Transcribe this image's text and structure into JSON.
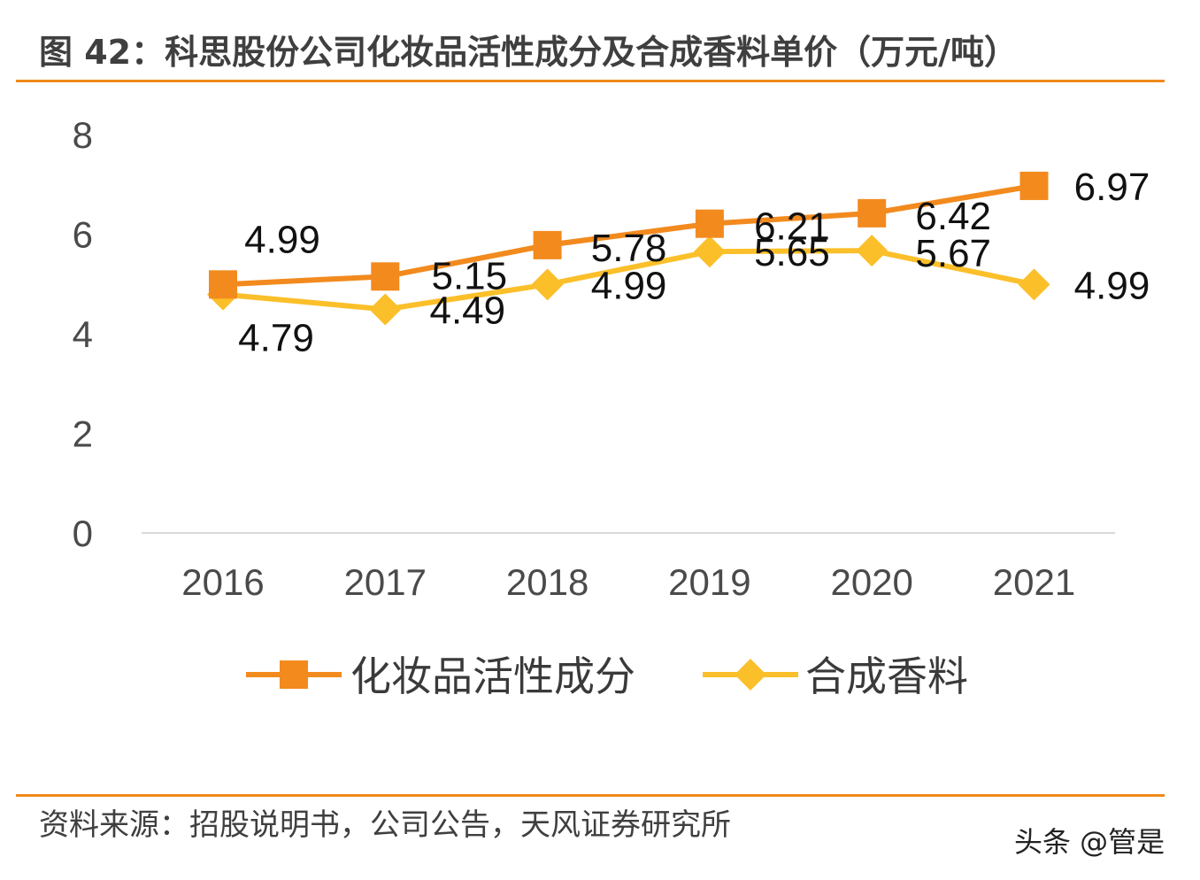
{
  "figure": {
    "title": "图 42：科思股份公司化妆品活性成分及合成香料单价（万元/吨）",
    "source": "资料来源：招股说明书，公司公告，天风证券研究所",
    "watermark": "头条 @管是"
  },
  "colors": {
    "rule": "#f08a1c",
    "series1": "#f28a1e",
    "series2": "#fbbf2a",
    "axis": "#d9d9d9",
    "tick_text": "#4a4a4a"
  },
  "chart_data": {
    "type": "line",
    "categories": [
      "2016",
      "2017",
      "2018",
      "2019",
      "2020",
      "2021"
    ],
    "ylim": [
      0,
      8
    ],
    "yticks": [
      "0",
      "2",
      "4",
      "6",
      "8"
    ],
    "grid": false,
    "legend_position": "bottom",
    "series": [
      {
        "name": "化妆品活性成分",
        "marker": "square",
        "values": [
          4.99,
          5.15,
          5.78,
          6.21,
          6.42,
          6.97
        ],
        "labels": [
          "4.99",
          "5.15",
          "5.78",
          "6.21",
          "6.42",
          "6.97"
        ]
      },
      {
        "name": "合成香料",
        "marker": "diamond",
        "values": [
          4.79,
          4.49,
          4.99,
          5.65,
          5.67,
          4.99
        ],
        "labels": [
          "4.79",
          "4.49",
          "4.99",
          "5.65",
          "5.67",
          "4.99"
        ]
      }
    ]
  }
}
